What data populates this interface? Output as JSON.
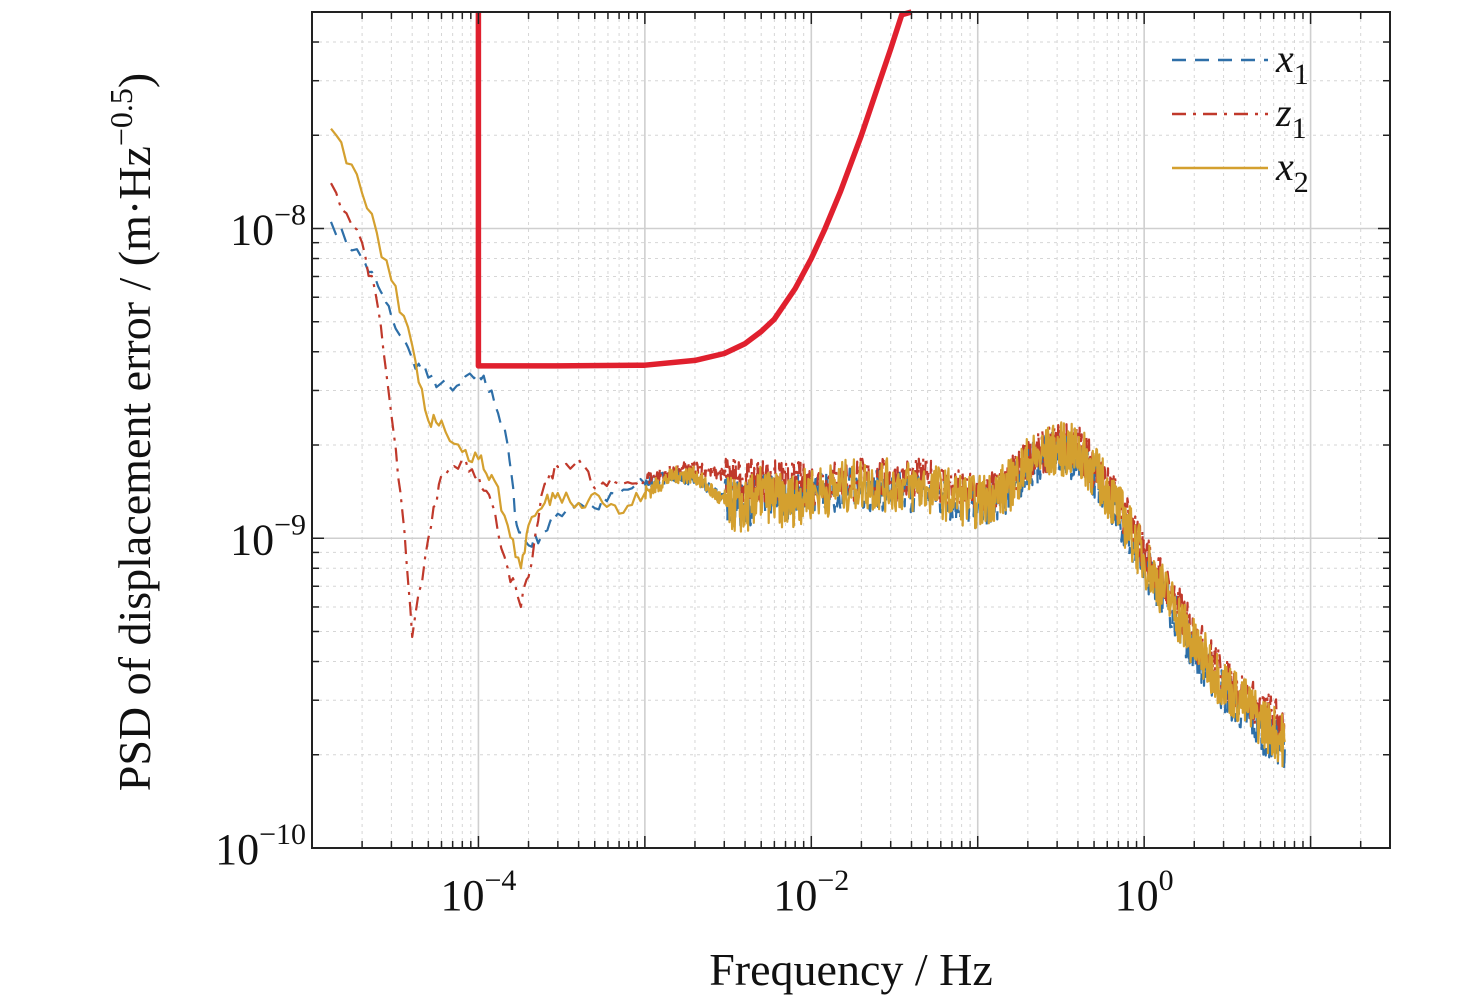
{
  "chart_data": {
    "type": "line",
    "title": "",
    "xlabel": "Frequency / Hz",
    "ylabel": "PSD of displacement error / (m·Hz",
    "ylabel_exp": "−0.5",
    "ylabel_close": ")",
    "x_scale": "log",
    "y_scale": "log",
    "xlim": [
      1e-05,
      30
    ],
    "ylim": [
      1e-10,
      5e-08
    ],
    "grid": true,
    "legend_position": "top-right",
    "x_ticks": [
      {
        "value": 0.0001,
        "base": "10",
        "exp": "−4"
      },
      {
        "value": 0.01,
        "base": "10",
        "exp": "−2"
      },
      {
        "value": 1,
        "base": "10",
        "exp": "0"
      }
    ],
    "y_ticks": [
      {
        "value": 1e-08,
        "base": "10",
        "exp": "−8"
      },
      {
        "value": 1e-09,
        "base": "10",
        "exp": "−9"
      },
      {
        "value": 1e-10,
        "base": "10",
        "exp": "−10"
      }
    ],
    "series": [
      {
        "name": "x",
        "subscript": "1",
        "color": "#2e6fa8",
        "style": "dashed",
        "width": 2.2,
        "noise": 0.09,
        "x": [
          1.3e-05,
          2e-05,
          2.5e-05,
          3e-05,
          4e-05,
          5e-05,
          7e-05,
          0.0001,
          0.00012,
          0.00015,
          0.00017,
          0.0002,
          0.00025,
          0.0003,
          0.0004,
          0.0005,
          0.0007,
          0.001,
          0.0015,
          0.002,
          0.003,
          0.004,
          0.005,
          0.007,
          0.01,
          0.02,
          0.05,
          0.1,
          0.15,
          0.2,
          0.3,
          0.4,
          0.5,
          0.7,
          1,
          1.5,
          2,
          3,
          5,
          7
        ],
        "y": [
          1.05e-08,
          8e-09,
          6.5e-09,
          5.2e-09,
          3.8e-09,
          3.3e-09,
          3e-09,
          3.4e-09,
          3e-09,
          2e-09,
          1.1e-09,
          9.5e-10,
          1.05e-09,
          1.2e-09,
          1.3e-09,
          1.25e-09,
          1.4e-09,
          1.5e-09,
          1.6e-09,
          1.55e-09,
          1.35e-09,
          1.25e-09,
          1.4e-09,
          1.35e-09,
          1.4e-09,
          1.45e-09,
          1.4e-09,
          1.25e-09,
          1.4e-09,
          1.7e-09,
          1.9e-09,
          1.8e-09,
          1.6e-09,
          1.2e-09,
          8.2e-10,
          5.8e-10,
          4.3e-10,
          3.2e-10,
          2.4e-10,
          2.1e-10
        ]
      },
      {
        "name": "z",
        "subscript": "1",
        "color": "#c0392b",
        "style": "dashdot",
        "width": 2.2,
        "noise": 0.09,
        "x": [
          1.3e-05,
          2e-05,
          2.5e-05,
          3e-05,
          3.5e-05,
          4e-05,
          5e-05,
          6e-05,
          8e-05,
          0.0001,
          0.00012,
          0.00015,
          0.00018,
          0.0002,
          0.00025,
          0.0003,
          0.0004,
          0.0005,
          0.0007,
          0.001,
          0.0015,
          0.002,
          0.003,
          0.004,
          0.005,
          0.007,
          0.01,
          0.02,
          0.05,
          0.1,
          0.15,
          0.2,
          0.3,
          0.4,
          0.5,
          0.7,
          1,
          1.5,
          2,
          3,
          5,
          7
        ],
        "y": [
          1.4e-08,
          9e-09,
          5.5e-09,
          2.5e-09,
          1.2e-09,
          4.8e-10,
          1e-09,
          1.6e-09,
          1.8e-09,
          1.6e-09,
          1.3e-09,
          8e-10,
          6e-10,
          7.5e-10,
          1.5e-09,
          1.7e-09,
          1.8e-09,
          1.45e-09,
          1.5e-09,
          1.55e-09,
          1.65e-09,
          1.7e-09,
          1.6e-09,
          1.5e-09,
          1.55e-09,
          1.5e-09,
          1.5e-09,
          1.55e-09,
          1.55e-09,
          1.35e-09,
          1.5e-09,
          1.8e-09,
          2e-09,
          2e-09,
          1.7e-09,
          1.3e-09,
          9e-10,
          6.4e-10,
          4.8e-10,
          3.6e-10,
          2.8e-10,
          2.5e-10
        ]
      },
      {
        "name": "x",
        "subscript": "2",
        "color": "#d4a02f",
        "style": "solid",
        "width": 2.2,
        "noise": 0.11,
        "x": [
          1.3e-05,
          2e-05,
          3e-05,
          4e-05,
          5e-05,
          6e-05,
          8e-05,
          0.0001,
          0.00012,
          0.00015,
          0.00018,
          0.0002,
          0.00025,
          0.0003,
          0.0004,
          0.0005,
          0.0007,
          0.001,
          0.0015,
          0.002,
          0.003,
          0.004,
          0.005,
          0.007,
          0.01,
          0.02,
          0.05,
          0.1,
          0.15,
          0.2,
          0.3,
          0.4,
          0.5,
          0.7,
          1,
          1.5,
          2,
          3,
          5,
          7
        ],
        "y": [
          2.1e-08,
          1.3e-08,
          6.8e-09,
          4.2e-09,
          2.4e-09,
          2.4e-09,
          1.9e-09,
          1.8e-09,
          1.6e-09,
          1.1e-09,
          8e-10,
          1.1e-09,
          1.3e-09,
          1.4e-09,
          1.3e-09,
          1.4e-09,
          1.2e-09,
          1.4e-09,
          1.6e-09,
          1.6e-09,
          1.3e-09,
          1.25e-09,
          1.4e-09,
          1.3e-09,
          1.4e-09,
          1.5e-09,
          1.45e-09,
          1.3e-09,
          1.45e-09,
          1.75e-09,
          1.95e-09,
          1.9e-09,
          1.65e-09,
          1.25e-09,
          8.5e-10,
          6e-10,
          4.5e-10,
          3.4e-10,
          2.6e-10,
          2.2e-10
        ]
      },
      {
        "name": "",
        "subscript": "",
        "color": "#e0202e",
        "style": "solid",
        "width": 5.5,
        "noise": 0,
        "x": [
          0.0001,
          0.0001,
          0.0003,
          0.001,
          0.002,
          0.003,
          0.004,
          0.005,
          0.006,
          0.008,
          0.01,
          0.012,
          0.015,
          0.02,
          0.025,
          0.03,
          0.035,
          0.04
        ],
        "y": [
          5e-08,
          3.6e-09,
          3.6e-09,
          3.62e-09,
          3.75e-09,
          3.95e-09,
          4.25e-09,
          4.65e-09,
          5.1e-09,
          6.4e-09,
          8e-09,
          9.9e-09,
          1.32e-08,
          2e-08,
          2.85e-08,
          3.8e-08,
          4.9e-08,
          5e-08
        ]
      }
    ]
  }
}
